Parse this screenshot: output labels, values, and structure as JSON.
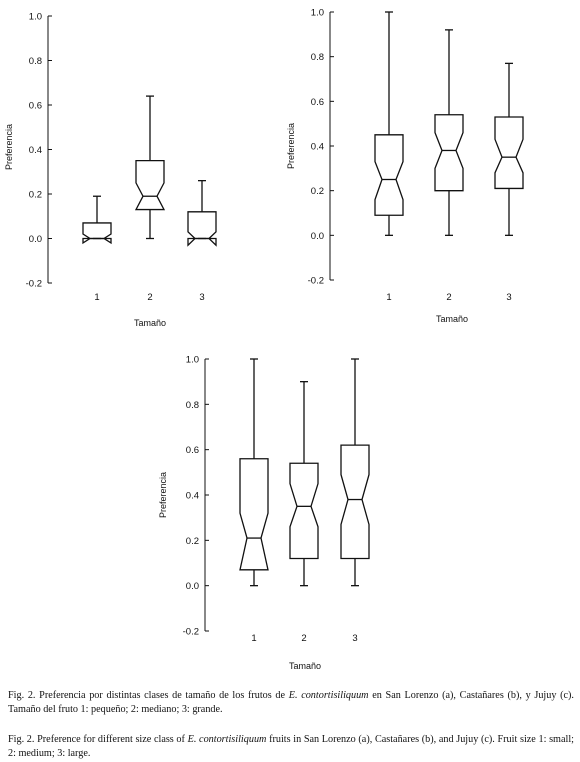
{
  "chart_data": [
    {
      "type": "boxplot",
      "ylabel": "Preferencia",
      "xlabel": "Tamaño",
      "ylim": [
        -0.2,
        1.0
      ],
      "yticks": [
        "1.0",
        "0.8",
        "0.6",
        "0.4",
        "0.2",
        "0.0",
        "-0.2"
      ],
      "categories": [
        "1",
        "2",
        "3"
      ],
      "boxes": [
        {
          "category": "1",
          "min": 0.0,
          "q1": 0.0,
          "median": 0.0,
          "q3": 0.07,
          "max": 0.19,
          "notch_low": -0.02,
          "notch_high": 0.02
        },
        {
          "category": "2",
          "min": 0.0,
          "q1": 0.13,
          "median": 0.19,
          "q3": 0.35,
          "max": 0.64,
          "notch_low": 0.13,
          "notch_high": 0.25
        },
        {
          "category": "3",
          "min": 0.0,
          "q1": 0.0,
          "median": 0.0,
          "q3": 0.12,
          "max": 0.26,
          "notch_low": -0.03,
          "notch_high": 0.03
        }
      ]
    },
    {
      "type": "boxplot",
      "ylabel": "Preferencia",
      "xlabel": "Tamaño",
      "ylim": [
        -0.2,
        1.0
      ],
      "yticks": [
        "1.0",
        "0.8",
        "0.6",
        "0.4",
        "0.2",
        "0.0",
        "-0.2"
      ],
      "categories": [
        "1",
        "2",
        "3"
      ],
      "boxes": [
        {
          "category": "1",
          "min": 0.0,
          "q1": 0.09,
          "median": 0.25,
          "q3": 0.45,
          "max": 1.0,
          "notch_low": 0.16,
          "notch_high": 0.33
        },
        {
          "category": "2",
          "min": 0.0,
          "q1": 0.2,
          "median": 0.38,
          "q3": 0.54,
          "max": 0.92,
          "notch_low": 0.3,
          "notch_high": 0.46
        },
        {
          "category": "3",
          "min": 0.0,
          "q1": 0.21,
          "median": 0.35,
          "q3": 0.53,
          "max": 0.77,
          "notch_low": 0.28,
          "notch_high": 0.43
        }
      ]
    },
    {
      "type": "boxplot",
      "ylabel": "Preferencia",
      "xlabel": "Tamaño",
      "ylim": [
        -0.2,
        1.0
      ],
      "yticks": [
        "1.0",
        "0.8",
        "0.6",
        "0.4",
        "0.2",
        "0.0",
        "-0.2"
      ],
      "categories": [
        "1",
        "2",
        "3"
      ],
      "boxes": [
        {
          "category": "1",
          "min": 0.0,
          "q1": 0.07,
          "median": 0.21,
          "q3": 0.56,
          "max": 1.0,
          "notch_low": 0.07,
          "notch_high": 0.32
        },
        {
          "category": "2",
          "min": 0.0,
          "q1": 0.12,
          "median": 0.35,
          "q3": 0.54,
          "max": 0.9,
          "notch_low": 0.26,
          "notch_high": 0.45
        },
        {
          "category": "3",
          "min": 0.0,
          "q1": 0.12,
          "median": 0.38,
          "q3": 0.62,
          "max": 1.0,
          "notch_low": 0.27,
          "notch_high": 0.49
        }
      ]
    }
  ],
  "captions": {
    "es_part1": "Fig. 2. Preferencia por distintas clases de tamaño de los frutos de ",
    "es_species": "E. contortisiliquum",
    "es_part2": " en San Lorenzo (a), Castañares (b), y Jujuy (c). Tamaño del fruto 1: pequeño; 2: mediano; 3: grande.",
    "en_part1": "Fig. 2. Preference for different size class of ",
    "en_species": "E. contortisiliquum",
    "en_part2": "  fruits in San Lorenzo (a), Castañares (b), and Jujuy (c). Fruit size 1: small; 2: medium; 3: large."
  }
}
